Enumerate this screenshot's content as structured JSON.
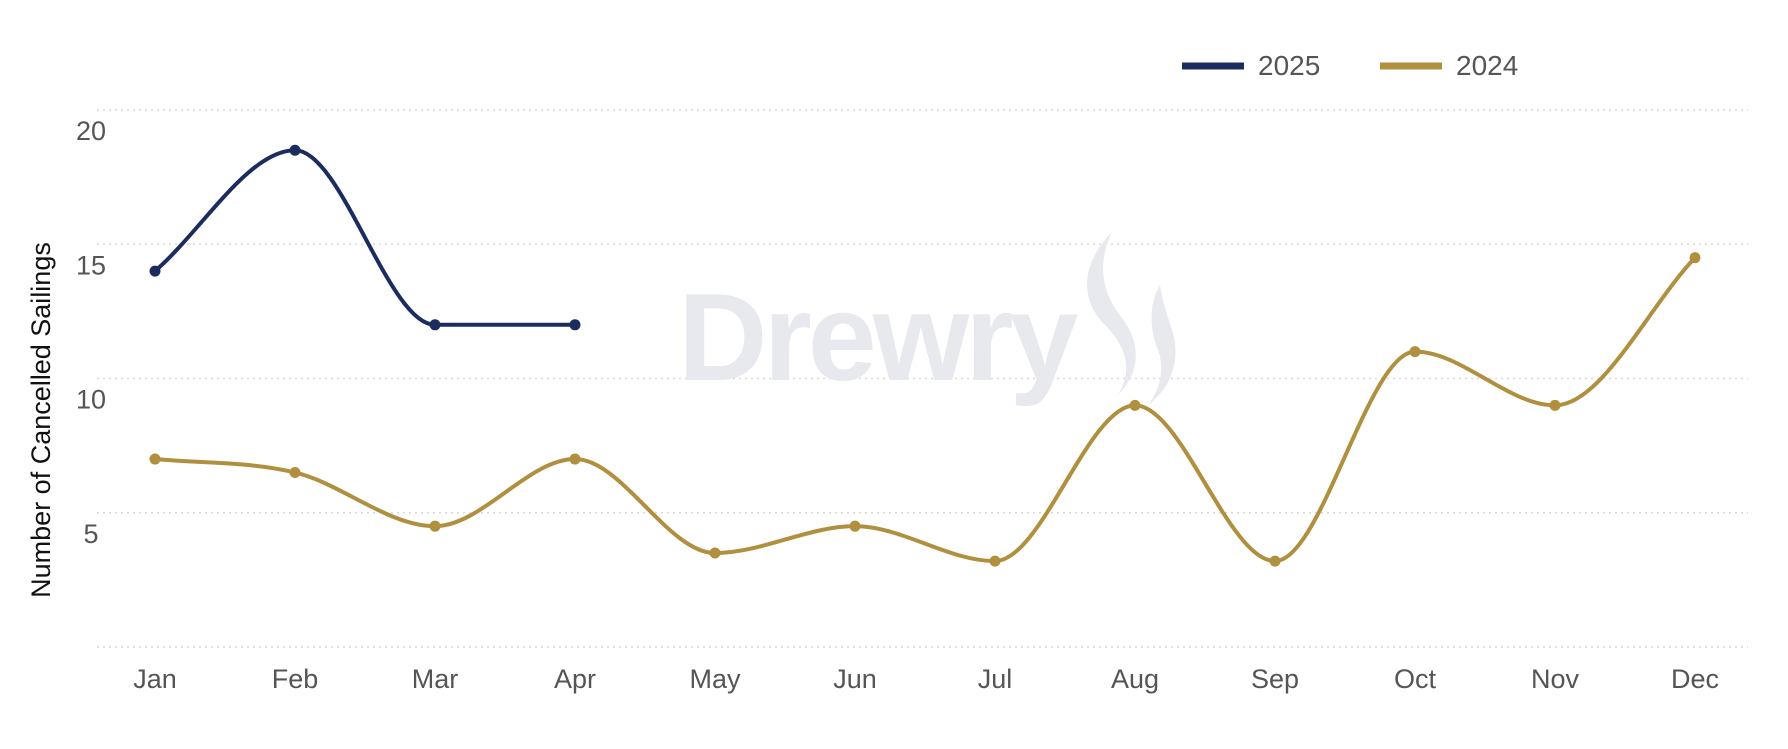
{
  "chart_data": {
    "type": "line",
    "categories": [
      "Jan",
      "Feb",
      "Mar",
      "Apr",
      "May",
      "Jun",
      "Jul",
      "Aug",
      "Sep",
      "Oct",
      "Nov",
      "Dec"
    ],
    "series": [
      {
        "name": "2025",
        "color": "#1b2d5e",
        "values": [
          14,
          18.5,
          12,
          12,
          null,
          null,
          null,
          null,
          null,
          null,
          null,
          null
        ]
      },
      {
        "name": "2024",
        "color": "#b08f3e",
        "values": [
          7,
          6.5,
          4.5,
          7,
          3.5,
          4.5,
          3.2,
          9,
          3.2,
          11,
          9,
          14.5
        ]
      }
    ],
    "ylabel": "Number of Cancelled Sailings",
    "xlabel": "",
    "yticks": [
      5,
      10,
      15,
      20
    ],
    "ylim": [
      0,
      20
    ],
    "grid": true,
    "legend_position": "top-right",
    "watermark": "Drewry"
  }
}
